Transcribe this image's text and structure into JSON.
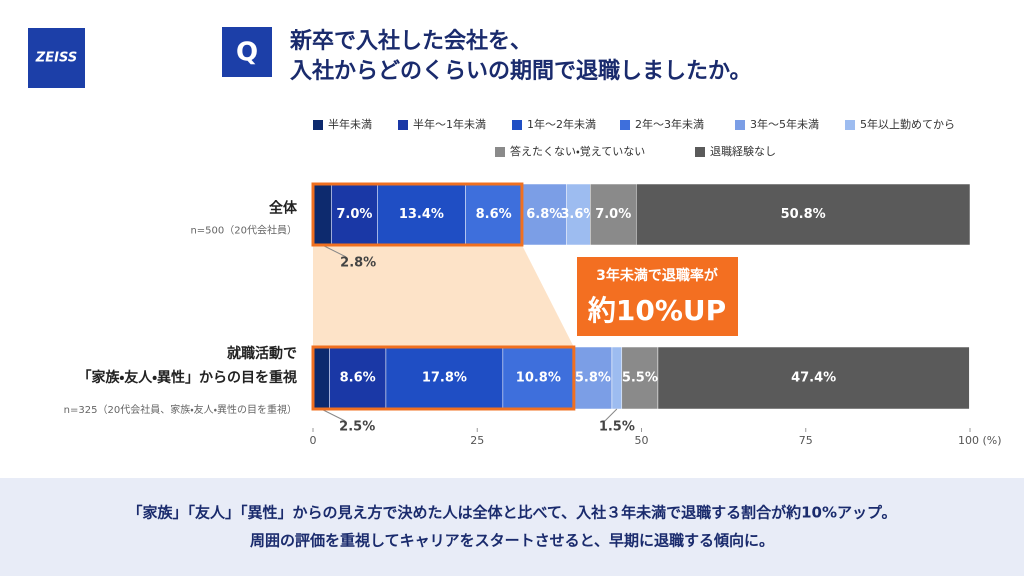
{
  "logo": "ZEISS",
  "q_badge": "Q",
  "title_lines": [
    "新卒で入社した会社を、",
    "入社からどのくらいの期間で退職しましたか。"
  ],
  "chart_data": {
    "type": "bar",
    "orientation": "horizontal",
    "stacked": true,
    "categories": [
      [
        "全体"
      ],
      [
        "就職活動で",
        "「家族・友人・異性」からの目を重視"
      ]
    ],
    "category_notes": [
      "n=500（20代会社員）",
      "n=325（20代会社員、家族・友人・異性の目を重視）"
    ],
    "series": [
      {
        "name": "半年未満",
        "color": "#0d2a6e",
        "values": [
          2.8,
          2.5
        ],
        "value_labels": [
          "2.8%",
          "2.5%"
        ]
      },
      {
        "name": "半年〜1年未満",
        "color": "#1a38a6",
        "values": [
          7.0,
          8.6
        ],
        "value_labels": [
          "7.0%",
          "8.6%"
        ]
      },
      {
        "name": "1年〜2年未満",
        "color": "#1f4ec4",
        "values": [
          13.4,
          17.8
        ],
        "value_labels": [
          "13.4%",
          "17.8%"
        ]
      },
      {
        "name": "2年〜3年未満",
        "color": "#3e6fdc",
        "values": [
          8.6,
          10.8
        ],
        "value_labels": [
          "8.6%",
          "10.8%"
        ]
      },
      {
        "name": "3年〜5年未満",
        "color": "#7b9ee6",
        "values": [
          6.8,
          5.8
        ],
        "value_labels": [
          "6.8%",
          "5.8%"
        ]
      },
      {
        "name": "5年以上勤めてから",
        "color": "#9dbcf0",
        "values": [
          3.6,
          1.5
        ],
        "value_labels": [
          "3.6%",
          "1.5%"
        ]
      },
      {
        "name": "答えたくない・覚えていない",
        "color": "#8a8a8a",
        "values": [
          7.0,
          5.5
        ],
        "value_labels": [
          "7.0%",
          "5.5%"
        ]
      },
      {
        "name": "退職経験なし",
        "color": "#5a5a5a",
        "values": [
          50.8,
          47.4
        ],
        "value_labels": [
          "50.8%",
          "47.4%"
        ]
      }
    ],
    "xlim": [
      0,
      100
    ],
    "xticks": [
      0,
      25,
      50,
      75,
      {
        "value": 100,
        "label": "100 (%)"
      }
    ],
    "callout": [
      "3年未満で退職率が",
      "約10%UP"
    ]
  },
  "footer_lines": [
    "「家族」「友人」「異性」からの見え方で決めた人は全体と比べて、入社３年未満で退職する割合が約10%アップ。",
    "周囲の評価を重視してキャリアをスタートさせると、早期に退職する傾向に。"
  ]
}
